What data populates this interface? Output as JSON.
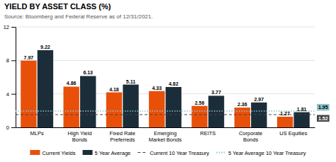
{
  "chart_data": {
    "type": "bar",
    "title": "YIELD BY ASSET CLASS (%)",
    "subtitle": "Source: Bloomberg and Federal Reserve as of 12/31/2021.",
    "categories": [
      "MLPs",
      "High Yield\nBonds",
      "Fixed Rate\nPreferreds",
      "Emerging\nMarket Bonds",
      "REITS",
      "Corporate\nBonds",
      "US Equities"
    ],
    "series": [
      {
        "name": "Current Yields",
        "color": "#E8500A",
        "values": [
          7.97,
          4.86,
          4.18,
          4.33,
          2.56,
          2.36,
          1.27
        ]
      },
      {
        "name": "5 Year Average",
        "color": "#1C2D3A",
        "values": [
          9.22,
          6.13,
          5.11,
          4.82,
          3.77,
          2.97,
          1.81
        ]
      }
    ],
    "reference_lines": [
      {
        "name": "Current 10 Year Treasury",
        "value": 1.52,
        "color": "#444444",
        "line_style": "dashed"
      },
      {
        "name": "5 Year Average 10 Year Treasury",
        "value": 1.95,
        "color": "#8fc4cc",
        "line_style": "dotted"
      }
    ],
    "ylim": [
      0,
      12
    ],
    "yticks": [
      0,
      4,
      8,
      12
    ],
    "grid": true,
    "legend": "bottom",
    "data_labels": true
  }
}
